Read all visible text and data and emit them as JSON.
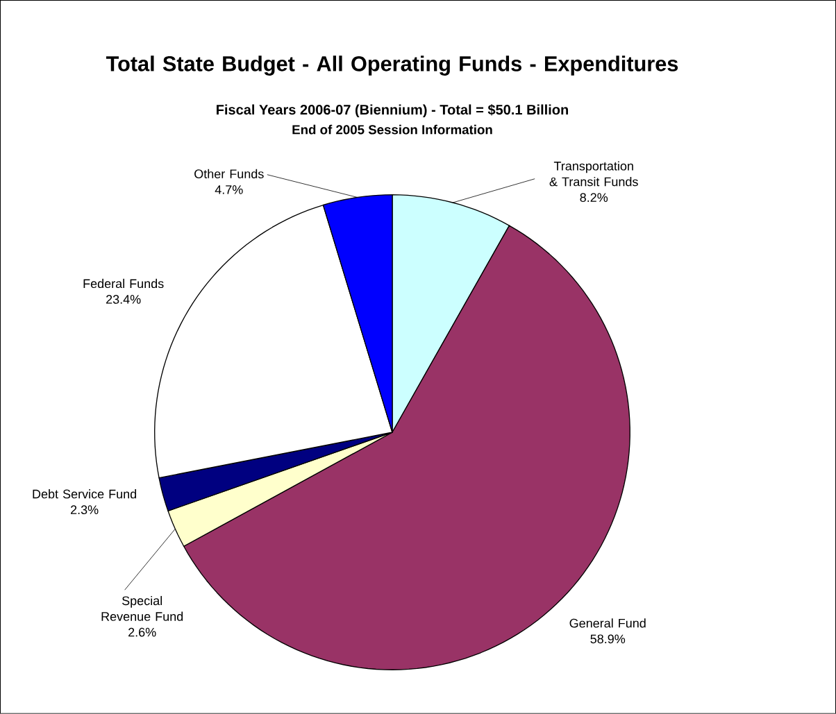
{
  "chart_data": {
    "type": "pie",
    "title": "Total State Budget - All Operating Funds - Expenditures",
    "subtitle": "Fiscal Years 2006-07 (Biennium) - Total = $50.1 Billion",
    "annotations": [
      "End of 2005 Session Information"
    ],
    "categories": [
      "Transportation & Transit Funds",
      "General Fund",
      "Special Revenue Fund",
      "Debt Service Fund",
      "Federal Funds",
      "Other Funds"
    ],
    "values": [
      8.2,
      58.9,
      2.6,
      2.3,
      23.4,
      4.7
    ],
    "colors": [
      "#ccffff",
      "#993366",
      "#ffffcc",
      "#000080",
      "#ffffff",
      "#0000ff"
    ],
    "value_labels": [
      "8.2%",
      "58.9%",
      "2.6%",
      "2.3%",
      "23.4%",
      "4.7%"
    ]
  }
}
